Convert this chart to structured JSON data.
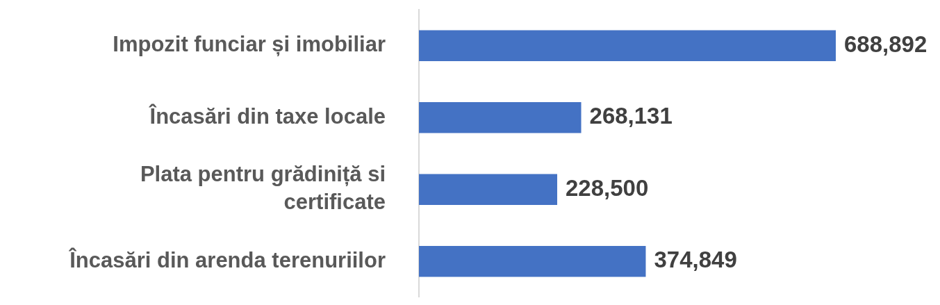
{
  "chart_data": {
    "type": "bar",
    "orientation": "horizontal",
    "categories": [
      "Impozit funciar și imobiliar",
      "Încasări din taxe locale",
      "Plata pentru grădiniță si certificate",
      "Încasări din arenda terenuriilor"
    ],
    "values": [
      688892,
      268131,
      228500,
      374849
    ],
    "value_labels": [
      "688,892",
      "268,131",
      "228,500",
      "374,849"
    ],
    "color": "#4472c4"
  }
}
